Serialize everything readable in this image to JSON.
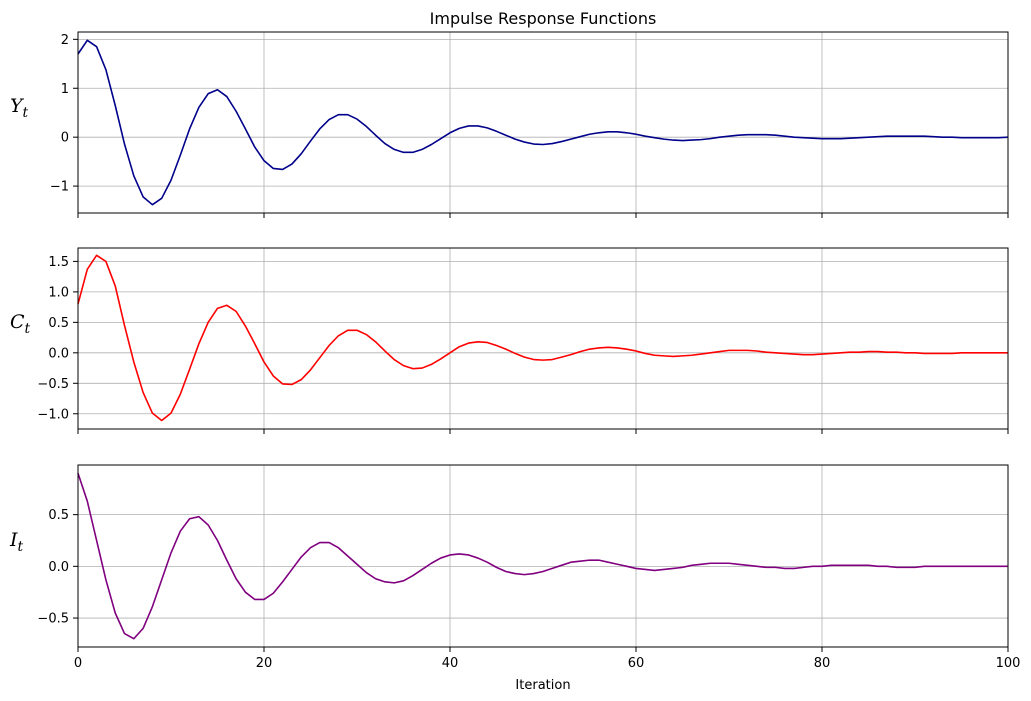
{
  "chart_data": {
    "type": "line",
    "title": "Impulse Response Functions",
    "xlabel": "Iteration",
    "xlim": [
      0,
      100
    ],
    "xticks": [
      0,
      20,
      40,
      60,
      80,
      100
    ],
    "grid": true,
    "panels": [
      {
        "ylabel_main": "Y",
        "ylabel_sub": "t",
        "color": "#00008b",
        "ylim": [
          -1.55,
          2.15
        ],
        "yticks": [
          -1,
          0,
          1,
          2
        ],
        "ytick_labels": [
          "−1",
          "0",
          "1",
          "2"
        ],
        "values": [
          1.7,
          1.98,
          1.85,
          1.38,
          0.65,
          -0.14,
          -0.79,
          -1.22,
          -1.38,
          -1.25,
          -0.88,
          -0.37,
          0.17,
          0.61,
          0.89,
          0.97,
          0.83,
          0.53,
          0.17,
          -0.2,
          -0.48,
          -0.64,
          -0.66,
          -0.55,
          -0.34,
          -0.08,
          0.17,
          0.36,
          0.46,
          0.46,
          0.37,
          0.22,
          0.04,
          -0.13,
          -0.25,
          -0.31,
          -0.31,
          -0.25,
          -0.15,
          -0.03,
          0.09,
          0.18,
          0.23,
          0.23,
          0.19,
          0.12,
          0.04,
          -0.04,
          -0.1,
          -0.14,
          -0.15,
          -0.13,
          -0.09,
          -0.04,
          0.01,
          0.06,
          0.09,
          0.11,
          0.11,
          0.09,
          0.06,
          0.02,
          -0.01,
          -0.04,
          -0.06,
          -0.07,
          -0.06,
          -0.05,
          -0.03,
          0.0,
          0.02,
          0.04,
          0.05,
          0.05,
          0.05,
          0.04,
          0.02,
          0.0,
          -0.01,
          -0.02,
          -0.03,
          -0.03,
          -0.03,
          -0.02,
          -0.01,
          0.0,
          0.01,
          0.02,
          0.02,
          0.02,
          0.02,
          0.02,
          0.01,
          0.0,
          0.0,
          -0.01,
          -0.01,
          -0.01,
          -0.01,
          -0.01,
          0.0
        ]
      },
      {
        "ylabel_main": "C",
        "ylabel_sub": "t",
        "color": "#ff0000",
        "ylim": [
          -1.25,
          1.72
        ],
        "yticks": [
          -1.0,
          -0.5,
          0.0,
          0.5,
          1.0,
          1.5
        ],
        "ytick_labels": [
          "−1.0",
          "−0.5",
          "0.0",
          "0.5",
          "1.0",
          "1.5"
        ],
        "values": [
          0.8,
          1.37,
          1.6,
          1.5,
          1.1,
          0.45,
          -0.15,
          -0.65,
          -0.99,
          -1.11,
          -0.99,
          -0.68,
          -0.27,
          0.15,
          0.5,
          0.73,
          0.78,
          0.68,
          0.44,
          0.15,
          -0.15,
          -0.38,
          -0.51,
          -0.52,
          -0.44,
          -0.28,
          -0.08,
          0.12,
          0.28,
          0.37,
          0.37,
          0.3,
          0.18,
          0.03,
          -0.11,
          -0.21,
          -0.26,
          -0.25,
          -0.19,
          -0.1,
          0.0,
          0.1,
          0.16,
          0.18,
          0.17,
          0.12,
          0.06,
          -0.01,
          -0.07,
          -0.11,
          -0.12,
          -0.11,
          -0.07,
          -0.03,
          0.02,
          0.06,
          0.08,
          0.09,
          0.08,
          0.06,
          0.03,
          -0.01,
          -0.04,
          -0.05,
          -0.06,
          -0.05,
          -0.04,
          -0.02,
          0.0,
          0.02,
          0.04,
          0.04,
          0.04,
          0.03,
          0.01,
          0.0,
          -0.01,
          -0.02,
          -0.03,
          -0.03,
          -0.02,
          -0.01,
          0.0,
          0.01,
          0.01,
          0.02,
          0.02,
          0.01,
          0.01,
          0.0,
          0.0,
          -0.01,
          -0.01,
          -0.01,
          -0.01,
          0.0,
          0.0,
          0.0,
          0.0,
          0.0,
          0.0
        ]
      },
      {
        "ylabel_main": "I",
        "ylabel_sub": "t",
        "color": "#800080",
        "ylim": [
          -0.78,
          0.98
        ],
        "yticks": [
          -0.5,
          0.0,
          0.5
        ],
        "ytick_labels": [
          "−0.5",
          "0.0",
          "0.5"
        ],
        "values": [
          0.9,
          0.63,
          0.25,
          -0.13,
          -0.45,
          -0.65,
          -0.7,
          -0.6,
          -0.39,
          -0.13,
          0.13,
          0.34,
          0.46,
          0.48,
          0.4,
          0.25,
          0.06,
          -0.12,
          -0.25,
          -0.32,
          -0.32,
          -0.26,
          -0.15,
          -0.03,
          0.09,
          0.18,
          0.23,
          0.23,
          0.18,
          0.1,
          0.02,
          -0.06,
          -0.12,
          -0.15,
          -0.16,
          -0.14,
          -0.09,
          -0.03,
          0.03,
          0.08,
          0.11,
          0.12,
          0.11,
          0.08,
          0.04,
          -0.01,
          -0.05,
          -0.07,
          -0.08,
          -0.07,
          -0.05,
          -0.02,
          0.01,
          0.04,
          0.05,
          0.06,
          0.06,
          0.04,
          0.02,
          0.0,
          -0.02,
          -0.03,
          -0.04,
          -0.03,
          -0.02,
          -0.01,
          0.01,
          0.02,
          0.03,
          0.03,
          0.03,
          0.02,
          0.01,
          0.0,
          -0.01,
          -0.01,
          -0.02,
          -0.02,
          -0.01,
          0.0,
          0.0,
          0.01,
          0.01,
          0.01,
          0.01,
          0.01,
          0.0,
          0.0,
          -0.01,
          -0.01,
          -0.01,
          0.0,
          0.0,
          0.0,
          0.0,
          0.0,
          0.0,
          0.0,
          0.0,
          0.0,
          0.0
        ]
      }
    ]
  }
}
